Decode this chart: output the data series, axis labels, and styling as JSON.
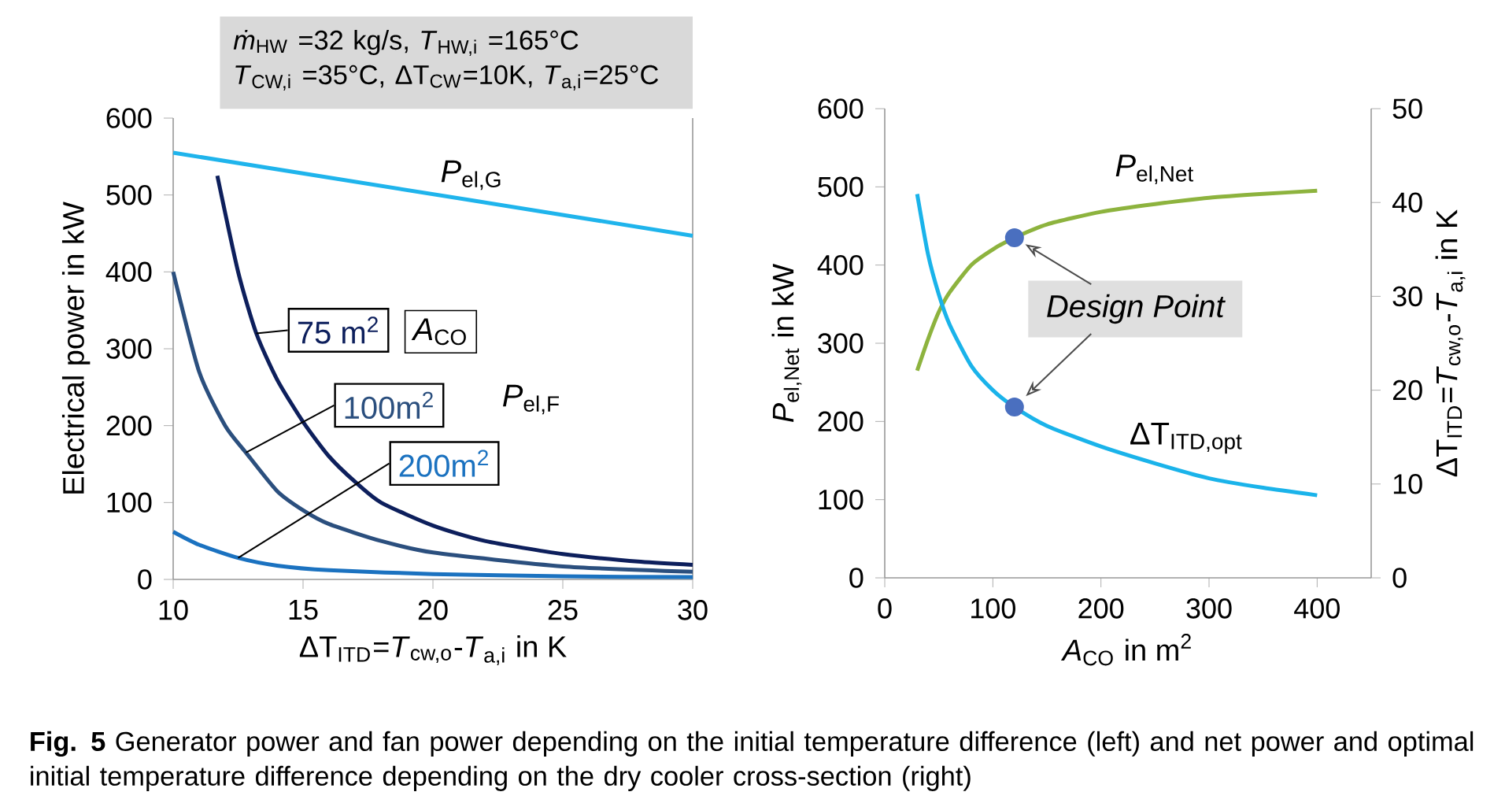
{
  "chart_data": [
    {
      "type": "line",
      "xlabel": "ΔT$_{ITD}$=*T*$_{cw,o}$-*T*$_{a,i}$  in K",
      "ylabel": "Electrical power in kW",
      "xlim": [
        10,
        30
      ],
      "ylim": [
        0,
        600
      ],
      "xticks": [
        10,
        15,
        20,
        25,
        30
      ],
      "yticks": [
        0,
        100,
        200,
        300,
        400,
        500,
        600
      ],
      "series": [
        {
          "name": "*P*$_{el,G}$",
          "color": "#1fb4ec",
          "x": [
            10,
            21.5,
            30
          ],
          "values": [
            555,
            493,
            447
          ]
        },
        {
          "name": "75 m$^{2}$",
          "color": "#0d1f5c",
          "x": [
            11.7,
            12.5,
            13.2,
            14,
            15,
            16,
            17,
            18,
            20,
            22,
            25,
            28,
            30
          ],
          "values": [
            525,
            400,
            320,
            260,
            205,
            160,
            127,
            100,
            70,
            50,
            33,
            23,
            19
          ]
        },
        {
          "name": "100m$^{2}$",
          "color": "#2b4f7e",
          "x": [
            10,
            11,
            12,
            12.8,
            14,
            15,
            16,
            18,
            20,
            25,
            30
          ],
          "values": [
            400,
            270,
            200,
            165,
            115,
            90,
            72,
            50,
            35,
            17,
            10
          ]
        },
        {
          "name": "200m$^{2}$",
          "color": "#1b72c0",
          "x": [
            10,
            11,
            12.5,
            14,
            16,
            20,
            25,
            30
          ],
          "values": [
            62,
            45,
            28,
            18,
            12,
            7,
            4,
            3
          ]
        }
      ],
      "annotations": [
        "*ṁ*$_{HW}$ =32 kg/s, *T*$_{HW,i}$ =165°C",
        "*T*$_{CW,i}$ =35°C, ΔT$_{CW}$=10K, *T*$_{a,i}$=25°C",
        "*A*$_{CO}$",
        "*P*$_{el,F}$",
        "**Fig. 5**  Generator power and fan power depending on the initial temperature difference (left) and net power and optimal initial temperature difference depending on the dry cooler cross-section (right)"
      ]
    },
    {
      "type": "line",
      "xlabel": "*A*$_{CO}$ in m$^{2}$",
      "ylabel": "*P*$_{el,Net}$ in kW",
      "y2label": "ΔT$_{ITD}$=*T*$_{cw,o}$-*T*$_{a,i}$ in K",
      "xlim": [
        0,
        450
      ],
      "ylim": [
        0,
        600
      ],
      "y2lim": [
        0,
        50
      ],
      "xticks": [
        0,
        100,
        200,
        300,
        400
      ],
      "yticks": [
        0,
        100,
        200,
        300,
        400,
        500,
        600
      ],
      "y2ticks": [
        0,
        10,
        20,
        30,
        40,
        50
      ],
      "series": [
        {
          "name": "*P*$_{el,Net}$",
          "color": "#8db33e",
          "x": [
            30,
            40,
            50,
            60,
            80,
            100,
            120,
            150,
            200,
            250,
            300,
            350,
            400
          ],
          "values": [
            265,
            305,
            340,
            365,
            400,
            420,
            435,
            452,
            468,
            478,
            486,
            491,
            495
          ]
        },
        {
          "name": "ΔT$_{ITD,opt}$",
          "color": "#1ab3ea",
          "axis": "y2",
          "x": [
            30,
            40,
            50,
            60,
            80,
            100,
            120,
            150,
            200,
            250,
            300,
            350,
            400
          ],
          "values": [
            40.9,
            34.5,
            30.2,
            27,
            22.6,
            20,
            18.2,
            16.2,
            14,
            12.2,
            10.6,
            9.6,
            8.8
          ]
        },
        {
          "type": "scatter",
          "marker": "circle",
          "color": "#4a6fbf",
          "x": [
            120
          ],
          "values": [
            435
          ]
        },
        {
          "type": "scatter",
          "marker": "circle",
          "color": "#4a6fbf",
          "axis": "y2",
          "x": [
            120
          ],
          "values": [
            18.2
          ]
        }
      ],
      "annotations": [
        {
          "text": "Design Point",
          "x": 120,
          "y": 435
        }
      ]
    }
  ]
}
